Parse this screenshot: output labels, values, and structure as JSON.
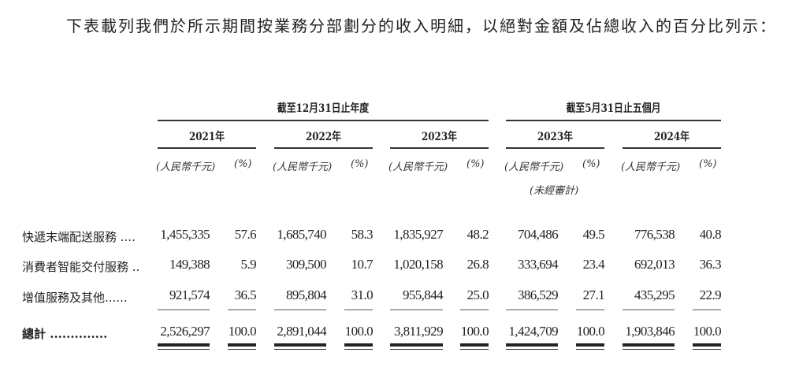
{
  "intro": "下表載列我們於所示期間按業務分部劃分的收入明細，以絕對金額及佔總收入的百分比列示：",
  "table": {
    "group_headers": [
      "截至12月31日止年度",
      "截至5月31日止五個月"
    ],
    "years": [
      "2021年",
      "2022年",
      "2023年",
      "2023年",
      "2024年"
    ],
    "unit_amount": "(人民幣千元)",
    "unit_pct": "(%)",
    "unaudited_note": "(未經審計)",
    "rows": [
      {
        "label": "快遞末端配送服務 ....",
        "values": [
          "1,455,335",
          "57.6",
          "1,685,740",
          "58.3",
          "1,835,927",
          "48.2",
          "704,486",
          "49.5",
          "776,538",
          "40.8"
        ]
      },
      {
        "label": "消費者智能交付服務 ..",
        "values": [
          "149,388",
          "5.9",
          "309,500",
          "10.7",
          "1,020,158",
          "26.8",
          "333,694",
          "23.4",
          "692,013",
          "36.3"
        ]
      },
      {
        "label": "增值服務及其他......",
        "values": [
          "921,574",
          "36.5",
          "895,804",
          "31.0",
          "955,844",
          "25.0",
          "386,529",
          "27.1",
          "435,295",
          "22.9"
        ]
      }
    ],
    "total": {
      "label": "總計 ..............",
      "values": [
        "2,526,297",
        "100.0",
        "2,891,044",
        "100.0",
        "3,811,929",
        "100.0",
        "1,424,709",
        "100.0",
        "1,903,846",
        "100.0"
      ]
    }
  }
}
